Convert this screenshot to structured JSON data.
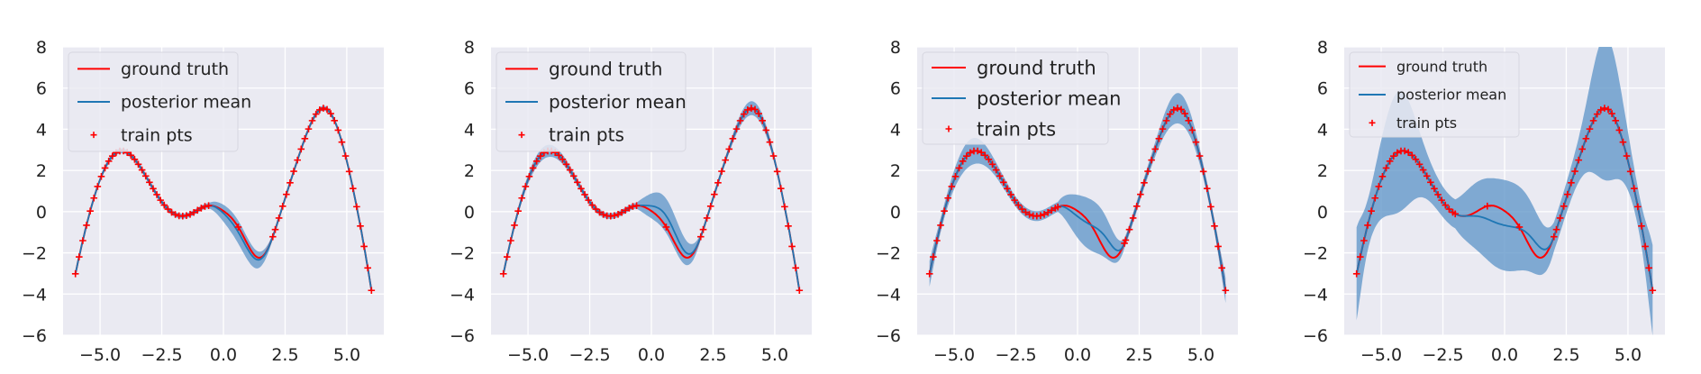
{
  "chart_data": [
    {
      "type": "line",
      "panel": 1,
      "xlim": [
        -6.5,
        6.5
      ],
      "ylim": [
        -6,
        8
      ],
      "xticks": [
        -5.0,
        -2.5,
        0.0,
        2.5,
        5.0
      ],
      "xtick_labels": [
        "−5.0",
        "−2.5",
        "0.0",
        "2.5",
        "5.0"
      ],
      "yticks": [
        -6,
        -4,
        -2,
        0,
        2,
        4,
        6,
        8
      ],
      "ytick_labels": [
        "−6",
        "−4",
        "−2",
        "0",
        "2",
        "4",
        "6",
        "8"
      ],
      "grid": true,
      "legend_position": "top-left",
      "legend": [
        "ground truth",
        "posterior mean",
        "train pts"
      ],
      "gap": [
        -0.6,
        2.0
      ],
      "mean_dev": {
        "offset": -0.25,
        "a0": -0.6,
        "a1": 2.0,
        "bump": 0.0
      },
      "band_base": 0.06,
      "band_gap": 0.22,
      "band_peak": 0.0,
      "band_edge": 0.0,
      "sparse_points": [
        0.6
      ]
    },
    {
      "type": "line",
      "panel": 2,
      "xlim": [
        -6.5,
        6.5
      ],
      "ylim": [
        -6,
        8
      ],
      "xticks": [
        -5.0,
        -2.5,
        0.0,
        2.5,
        5.0
      ],
      "xtick_labels": [
        "−5.0",
        "−2.5",
        "0.0",
        "2.5",
        "5.0"
      ],
      "yticks": [
        -6,
        -4,
        -2,
        0,
        2,
        4,
        6,
        8
      ],
      "ytick_labels": [
        "−6",
        "−4",
        "−2",
        "0",
        "2",
        "4",
        "6",
        "8"
      ],
      "grid": true,
      "legend_position": "top-left",
      "legend": [
        "ground truth",
        "posterior mean",
        "train pts"
      ],
      "gap": [
        -0.6,
        2.0
      ],
      "mean_dev": {
        "offset": 0.55,
        "a0": -0.6,
        "a1": 2.0,
        "bump": 0.0
      },
      "band_base": 0.07,
      "band_gap": 0.35,
      "band_peak": 0.1,
      "band_edge": 0.0,
      "sparse_points": [
        0.6
      ]
    },
    {
      "type": "line",
      "panel": 3,
      "xlim": [
        -6.5,
        6.5
      ],
      "ylim": [
        -6,
        8
      ],
      "xticks": [
        -5.0,
        -2.5,
        0.0,
        2.5,
        5.0
      ],
      "xtick_labels": [
        "−5.0",
        "−2.5",
        "0.0",
        "2.5",
        "5.0"
      ],
      "yticks": [
        -6,
        -4,
        -2,
        0,
        2,
        4,
        6,
        8
      ],
      "ytick_labels": [
        "−6",
        "−4",
        "−2",
        "0",
        "2",
        "4",
        "6",
        "8"
      ],
      "grid": true,
      "legend_position": "top-left",
      "legend": [
        "ground truth",
        "posterior mean",
        "train pts"
      ],
      "gap": [
        -0.8,
        1.9
      ],
      "mean_dev": {
        "offset": 0.0,
        "a0": -0.8,
        "a1": 1.9,
        "bump": 0.0,
        "linear": true
      },
      "band_base": 0.12,
      "band_gap": 0.5,
      "band_peak": 0.25,
      "band_edge": 0.2,
      "sparse_points": []
    },
    {
      "type": "line",
      "panel": 4,
      "xlim": [
        -6.5,
        6.5
      ],
      "ylim": [
        -6,
        8
      ],
      "xticks": [
        -5.0,
        -2.5,
        0.0,
        2.5,
        5.0
      ],
      "xtick_labels": [
        "−5.0",
        "−2.5",
        "0.0",
        "2.5",
        "5.0"
      ],
      "yticks": [
        -6,
        -4,
        -2,
        0,
        2,
        4,
        6,
        8
      ],
      "ytick_labels": [
        "−6",
        "−4",
        "−2",
        "0",
        "2",
        "4",
        "6",
        "8"
      ],
      "grid": true,
      "legend_position": "top-left",
      "legend": [
        "ground truth",
        "posterior mean",
        "train pts"
      ],
      "gap": [
        -2.0,
        2.0
      ],
      "mean_dev": {
        "offset": 0.0,
        "a0": -2.0,
        "a1": 2.0,
        "bump": 0.0,
        "linear": true
      },
      "band_base": 0.35,
      "band_gap": 0.75,
      "band_peak": 1.4,
      "band_edge": 0.8,
      "sparse_points": [
        -0.7,
        0.6
      ]
    }
  ],
  "legend_labels": {
    "ground_truth": "ground truth",
    "posterior_mean": "posterior mean",
    "train_pts": "train pts"
  },
  "colors": {
    "background": "#EAEAF2",
    "grid": "#FFFFFF",
    "ground_truth": "#FF0000",
    "posterior_mean": "#1F77B4",
    "band": "#5B93C7",
    "train_pts": "#FF0000"
  }
}
